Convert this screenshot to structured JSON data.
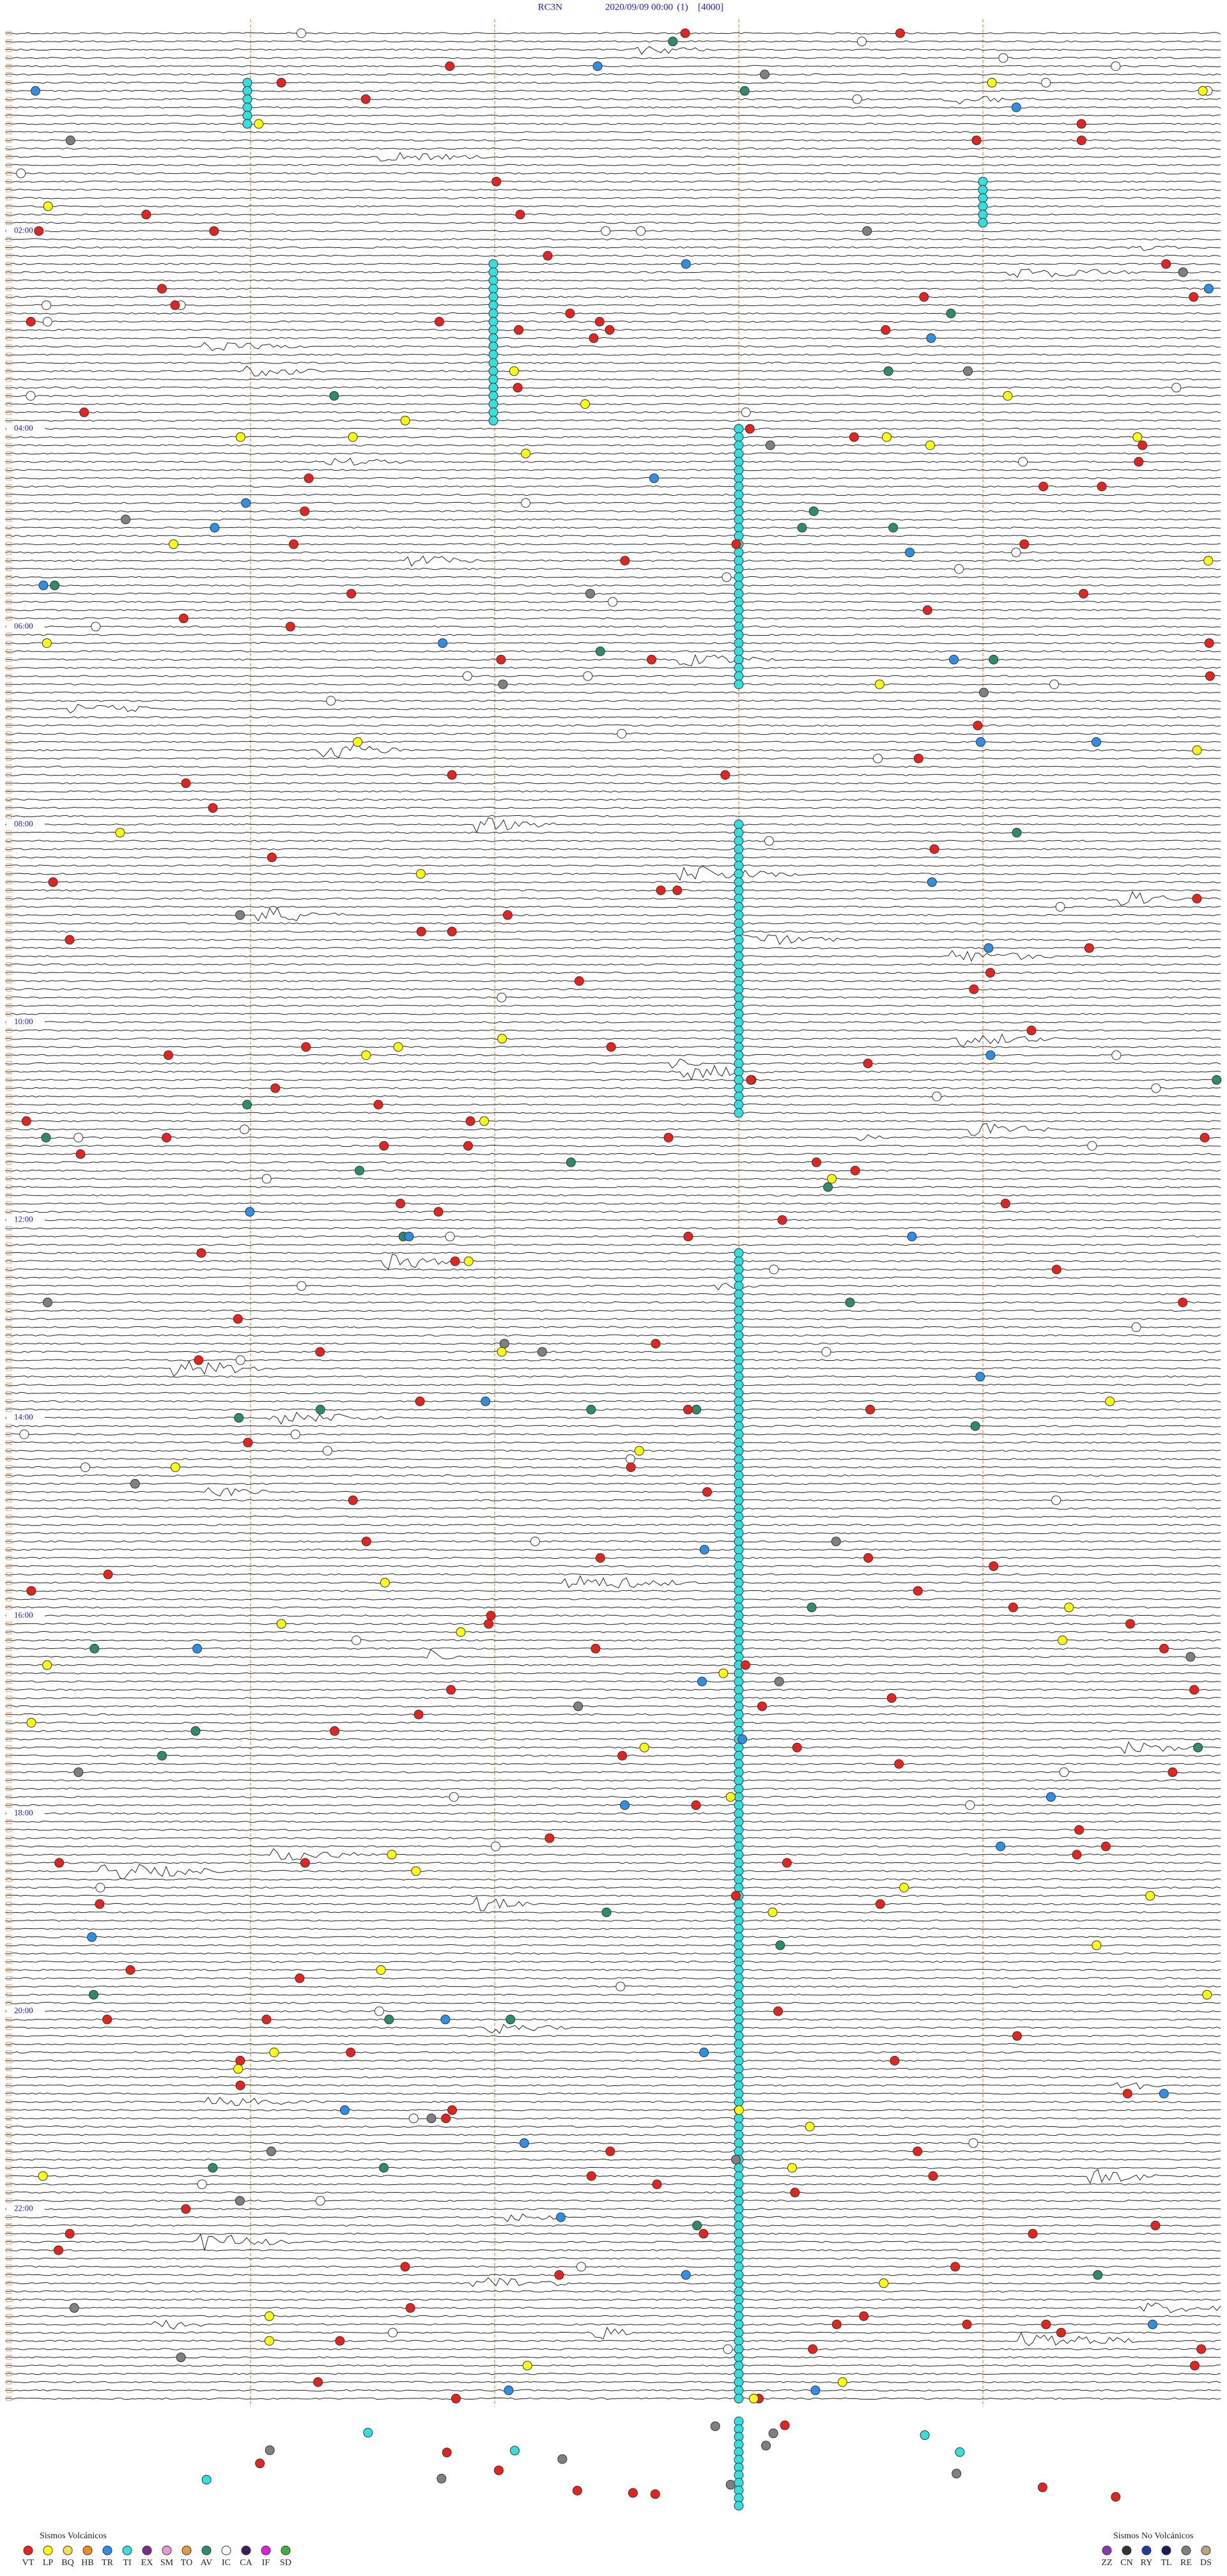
{
  "header": {
    "station": "RC3N",
    "datetime": "2020/09/09 00:00",
    "channel": "(1)",
    "scale": "[4000]"
  },
  "hour_labels": [
    "02:00",
    "04:00",
    "06:00",
    "08:00",
    "10:00",
    "12:00",
    "14:00",
    "16:00",
    "18:00",
    "20:00",
    "22:00"
  ],
  "legend": {
    "volcanic": {
      "title": "Sismos Volcánicos",
      "items": [
        {
          "code": "VT",
          "color": "#e8221c"
        },
        {
          "code": "LP",
          "color": "#ffff00"
        },
        {
          "code": "BQ",
          "color": "#f5e050"
        },
        {
          "code": "HB",
          "color": "#f28c1e"
        },
        {
          "code": "TR",
          "color": "#2e8fe6"
        },
        {
          "code": "TI",
          "color": "#33e0e0"
        },
        {
          "code": "EX",
          "color": "#7a2e8c"
        },
        {
          "code": "SM",
          "color": "#e89ad8"
        },
        {
          "code": "TO",
          "color": "#e09a40"
        },
        {
          "code": "AV",
          "color": "#2e8c6e"
        },
        {
          "code": "IC",
          "color": "#ffffff"
        },
        {
          "code": "CA",
          "color": "#3a2050"
        },
        {
          "code": "IF",
          "color": "#e020e0"
        },
        {
          "code": "SD",
          "color": "#40b040"
        }
      ]
    },
    "non_volcanic": {
      "title": "Sismos No Volcánicos",
      "items": [
        {
          "code": "ZZ",
          "color": "#8a3ab0"
        },
        {
          "code": "CN",
          "color": "#333333"
        },
        {
          "code": "RY",
          "color": "#203aa0"
        },
        {
          "code": "TL",
          "color": "#1a1a60"
        },
        {
          "code": "RE",
          "color": "#808080"
        },
        {
          "code": "DS",
          "color": "#c0a080"
        }
      ]
    }
  }
}
